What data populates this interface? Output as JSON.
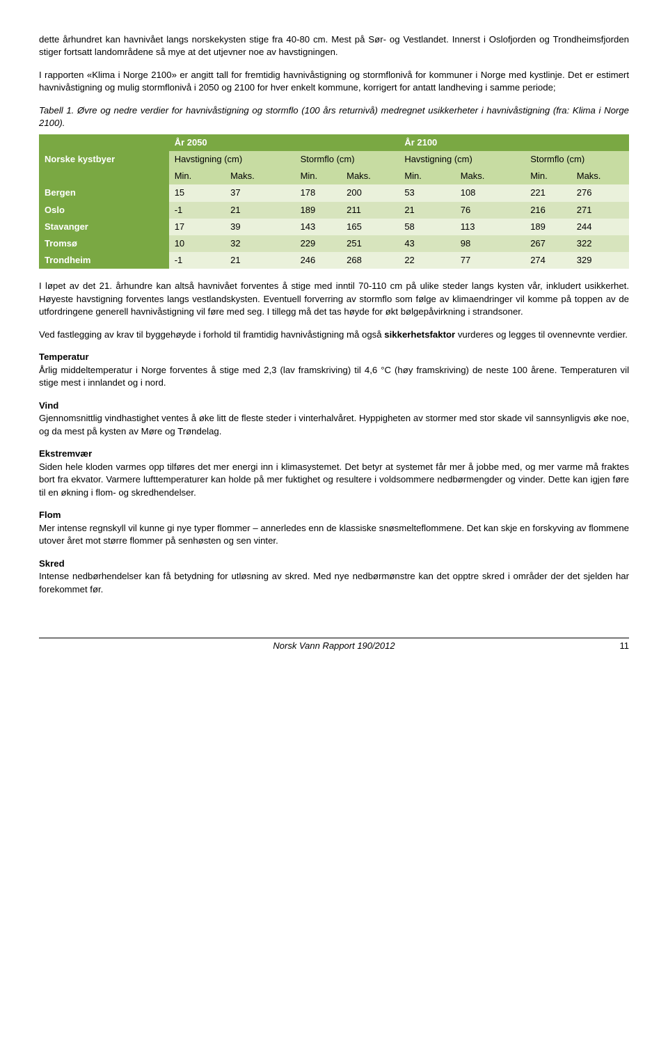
{
  "para1": "dette århundret kan havnivået langs norskekysten stige fra 40-80 cm. Mest på Sør- og Vestlandet. Innerst i Oslofjorden og Trondheimsfjorden stiger fortsatt landområdene så mye at det utjevner noe av havstigningen.",
  "para2": "I rapporten «Klima i Norge 2100» er angitt tall for fremtidig havnivåstigning og stormflonivå for kommuner i Norge med kystlinje. Det er estimert havnivåstigning og mulig stormflonivå i 2050 og 2100 for hver enkelt kommune, korrigert for antatt landheving i samme periode;",
  "table_caption": "Tabell 1. Øvre og nedre verdier for havnivåstigning og stormflo (100 års returnivå) medregnet usikkerheter i havnivåstigning (fra: Klima i Norge 2100).",
  "table": {
    "corner_label": "Norske kystbyer",
    "year_2050": "År 2050",
    "year_2100": "År 2100",
    "col_havstigning": "Havstigning (cm)",
    "col_stormflo": "Stormflo (cm)",
    "min": "Min.",
    "maks": "Maks.",
    "rows": {
      "bergen": {
        "label": "Bergen",
        "v": [
          "15",
          "37",
          "178",
          "200",
          "53",
          "108",
          "221",
          "276"
        ]
      },
      "oslo": {
        "label": "Oslo",
        "v": [
          "-1",
          "21",
          "189",
          "211",
          "21",
          "76",
          "216",
          "271"
        ]
      },
      "stavanger": {
        "label": "Stavanger",
        "v": [
          "17",
          "39",
          "143",
          "165",
          "58",
          "113",
          "189",
          "244"
        ]
      },
      "tromso": {
        "label": "Tromsø",
        "v": [
          "10",
          "32",
          "229",
          "251",
          "43",
          "98",
          "267",
          "322"
        ]
      },
      "trondheim": {
        "label": "Trondheim",
        "v": [
          "-1",
          "21",
          "246",
          "268",
          "22",
          "77",
          "274",
          "329"
        ]
      }
    }
  },
  "para3": "I løpet av det 21. århundre kan altså havnivået forventes å stige med inntil 70-110 cm på ulike steder langs kysten vår, inkludert usikkerhet. Høyeste havstigning forventes langs vestlandskysten. Eventuell forverring av stormflo som følge av klimaendringer vil komme på toppen av de utfordringene generell havnivåstigning vil føre med seg. I tillegg må det tas høyde for økt bølgepåvirkning i strandsoner.",
  "para4a": "Ved fastlegging av krav til byggehøyde i forhold til framtidig havnivåstigning må også ",
  "para4b": "sikkerhetsfaktor",
  "para4c": " vurderes og legges til ovennevnte verdier.",
  "sec_temp_h": "Temperatur",
  "sec_temp": "Årlig middeltemperatur i Norge forventes å stige med 2,3 (lav framskriving) til 4,6 °C (høy framskriving) de neste 100 årene. Temperaturen vil stige mest i innlandet og i nord.",
  "sec_vind_h": "Vind",
  "sec_vind": "Gjennomsnittlig vindhastighet ventes å øke litt de fleste steder i vinterhalvåret. Hyppigheten av stormer med stor skade vil sannsynligvis øke noe, og da mest på kysten av Møre og Trøndelag.",
  "sec_ekstrem_h": "Ekstremvær",
  "sec_ekstrem": "Siden hele kloden varmes opp tilføres det mer energi inn i klimasystemet. Det betyr at systemet får mer å jobbe med, og mer varme må fraktes bort fra ekvator. Varmere lufttemperaturer kan holde på mer fuktighet og resultere i voldsommere nedbørmengder og vinder. Dette kan igjen føre til en økning i flom- og skredhendelser.",
  "sec_flom_h": "Flom",
  "sec_flom": "Mer intense regnskyll vil kunne gi nye typer flommer – annerledes enn de klassiske snøsmelteflommene. Det kan skje en forskyving av flommene utover året mot større flommer på senhøsten og sen vinter.",
  "sec_skred_h": "Skred",
  "sec_skred": "Intense nedbørhendelser kan få betydning for utløsning av skred. Med nye nedbørmønstre kan det opptre skred i områder der det sjelden har forekommet før.",
  "footer_title": "Norsk Vann Rapport 190/2012",
  "footer_page": "11"
}
